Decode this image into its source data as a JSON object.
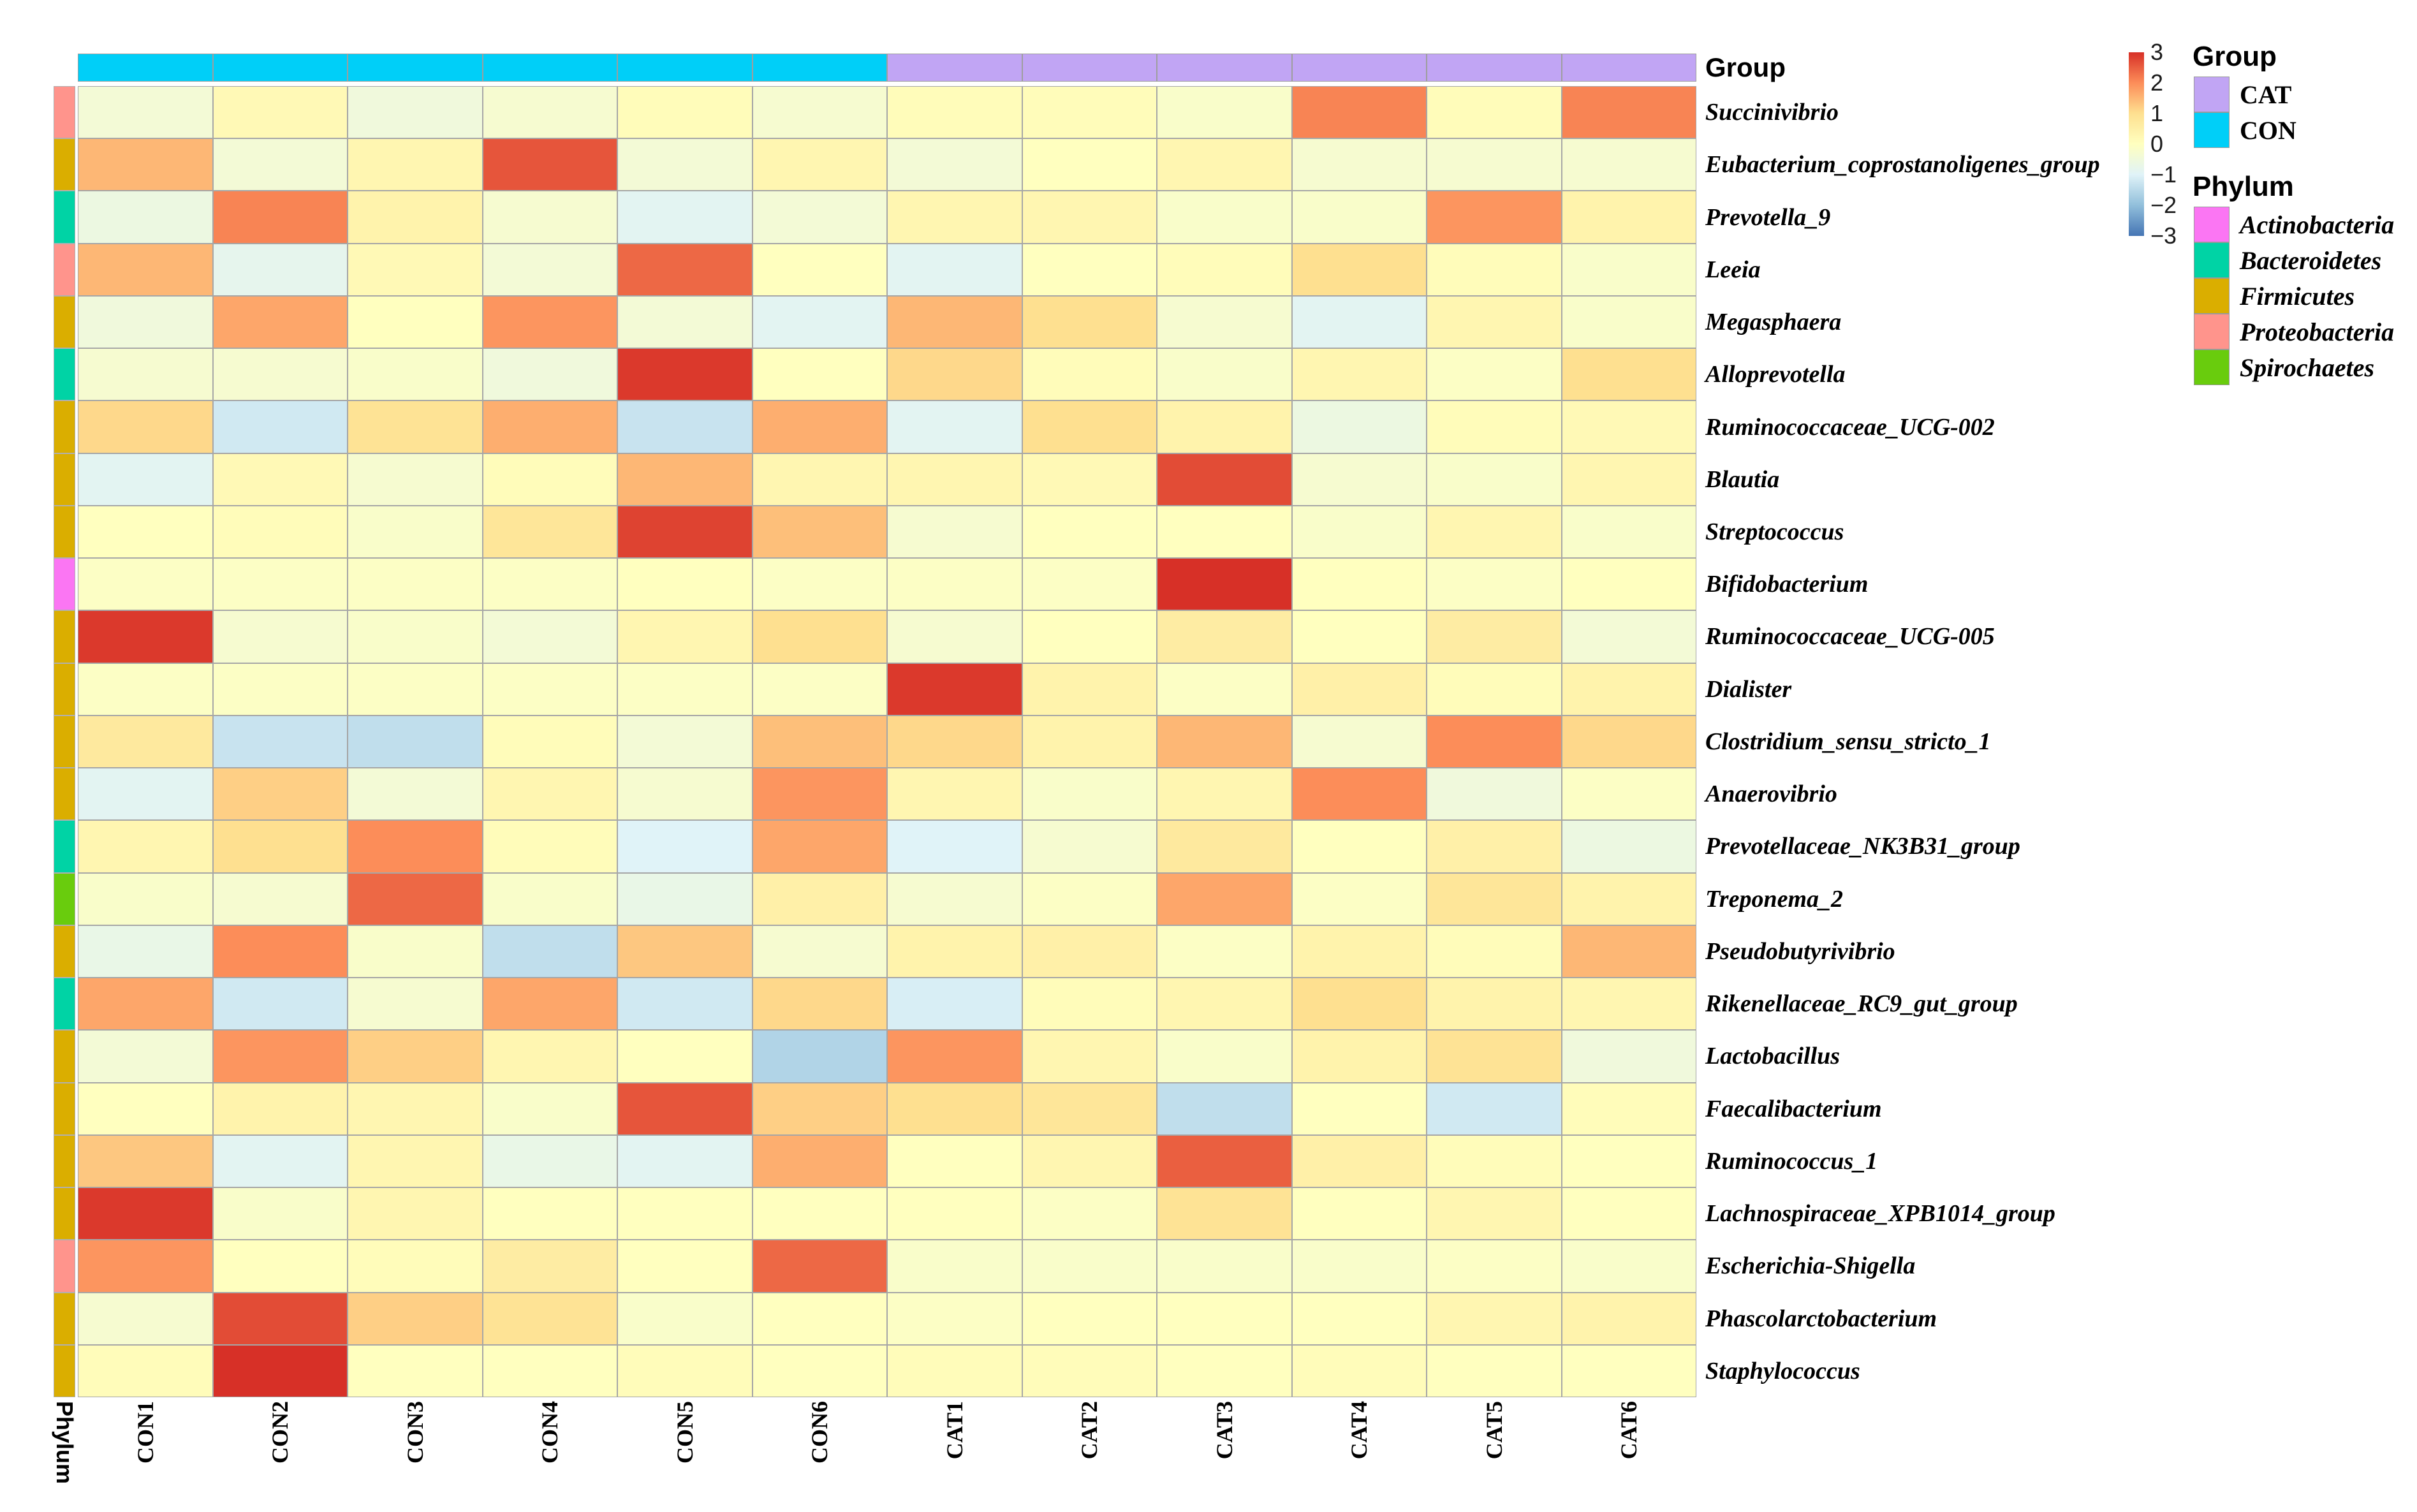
{
  "figure": {
    "group_axis_title": "Group",
    "phylum_axis_title": "Phylum"
  },
  "legend": {
    "scale_ticks": [
      3,
      2,
      1,
      0,
      -1,
      -2,
      -3
    ],
    "group": {
      "title": "Group",
      "items": [
        "CAT",
        "CON"
      ]
    },
    "phylum": {
      "title": "Phylum",
      "items": [
        "Actinobacteria",
        "Bacteroidetes",
        "Firmicutes",
        "Proteobacteria",
        "Spirochaetes"
      ]
    }
  },
  "chart_data": {
    "type": "heatmap",
    "columns": [
      "CON1",
      "CON2",
      "CON3",
      "CON4",
      "CON5",
      "CON6",
      "CAT1",
      "CAT2",
      "CAT3",
      "CAT4",
      "CAT5",
      "CAT6"
    ],
    "column_groups": [
      "CON",
      "CON",
      "CON",
      "CON",
      "CON",
      "CON",
      "CAT",
      "CAT",
      "CAT",
      "CAT",
      "CAT",
      "CAT"
    ],
    "group_colors": {
      "CON": "#00CFF8",
      "CAT": "#C1A5F4"
    },
    "phylum_colors": {
      "Actinobacteria": "#FB76F3",
      "Bacteroidetes": "#00D3A5",
      "Firmicutes": "#DAAE00",
      "Proteobacteria": "#FF948C",
      "Spirochaetes": "#69CC0D"
    },
    "value_range": [
      -3,
      3
    ],
    "colormap_stops": [
      [
        -3,
        "#4575B4"
      ],
      [
        -2,
        "#91BFDB"
      ],
      [
        -1,
        "#E0F3F8"
      ],
      [
        0,
        "#FFFFBF"
      ],
      [
        1,
        "#FEE090"
      ],
      [
        2,
        "#FC8D59"
      ],
      [
        3,
        "#D73027"
      ]
    ],
    "rows": [
      {
        "name": "Succinivibrio",
        "phylum": "Proteobacteria",
        "values": [
          -0.4,
          0.2,
          -0.5,
          -0.3,
          0.1,
          -0.3,
          0.1,
          0.1,
          -0.2,
          2.1,
          0.1,
          2.1
        ]
      },
      {
        "name": "Eubacterium_coprostanoligenes_group",
        "phylum": "Firmicutes",
        "values": [
          1.5,
          -0.4,
          0.3,
          2.6,
          -0.4,
          0.3,
          -0.4,
          0,
          0.3,
          -0.3,
          -0.3,
          -0.3
        ]
      },
      {
        "name": "Prevotella_9",
        "phylum": "Bacteroidetes",
        "values": [
          -0.6,
          2.1,
          0.4,
          -0.3,
          -0.9,
          -0.4,
          0.3,
          0.3,
          -0.2,
          -0.2,
          1.9,
          0.4
        ]
      },
      {
        "name": "Leeia",
        "phylum": "Proteobacteria",
        "values": [
          1.5,
          -0.8,
          0.2,
          -0.4,
          2.4,
          0,
          -0.9,
          0,
          0.1,
          1,
          0.1,
          -0.2
        ]
      },
      {
        "name": "Megasphaera",
        "phylum": "Firmicutes",
        "values": [
          -0.5,
          1.7,
          0,
          1.9,
          -0.4,
          -0.9,
          1.5,
          1,
          -0.3,
          -0.9,
          0.3,
          -0.2
        ]
      },
      {
        "name": "Alloprevotella",
        "phylum": "Bacteroidetes",
        "values": [
          -0.3,
          -0.3,
          -0.2,
          -0.5,
          2.9,
          0,
          1.1,
          0.1,
          -0.2,
          0.3,
          -0.1,
          1
        ]
      },
      {
        "name": "Ruminococcaceae_UCG-002",
        "phylum": "Firmicutes",
        "values": [
          1.1,
          -1.2,
          0.9,
          1.6,
          -1.3,
          1.6,
          -0.9,
          1,
          0.4,
          -0.6,
          0.1,
          0.2
        ]
      },
      {
        "name": "Blautia",
        "phylum": "Firmicutes",
        "values": [
          -0.9,
          0.2,
          -0.3,
          0.1,
          1.5,
          0.3,
          0.3,
          0.2,
          2.7,
          -0.3,
          -0.2,
          0.3
        ]
      },
      {
        "name": "Streptococcus",
        "phylum": "Firmicutes",
        "values": [
          0,
          0.1,
          -0.2,
          0.8,
          2.8,
          1.4,
          -0.3,
          0,
          0,
          -0.2,
          0.3,
          -0.2
        ]
      },
      {
        "name": "Bifidobacterium",
        "phylum": "Actinobacteria",
        "values": [
          -0.1,
          -0.1,
          -0.1,
          -0.1,
          0,
          -0.1,
          -0.1,
          -0.1,
          3,
          0,
          -0.1,
          0
        ]
      },
      {
        "name": "Ruminococcaceae_UCG-005",
        "phylum": "Firmicutes",
        "values": [
          2.9,
          -0.3,
          -0.2,
          -0.4,
          0.3,
          1,
          -0.3,
          0,
          0.6,
          0,
          0.6,
          -0.4
        ]
      },
      {
        "name": "Dialister",
        "phylum": "Firmicutes",
        "values": [
          -0.1,
          -0.1,
          -0.1,
          -0.1,
          -0.1,
          -0.1,
          2.9,
          0.4,
          -0.1,
          0.5,
          0.1,
          0.4
        ]
      },
      {
        "name": "Clostridium_sensu_stricto_1",
        "phylum": "Firmicutes",
        "values": [
          0.7,
          -1.3,
          -1.4,
          0.1,
          -0.4,
          1.4,
          1.1,
          0.4,
          1.5,
          -0.3,
          2,
          1.1
        ]
      },
      {
        "name": "Anaerovibrio",
        "phylum": "Firmicutes",
        "values": [
          -0.9,
          1.2,
          -0.4,
          0.3,
          -0.3,
          1.9,
          0.3,
          -0.2,
          0.3,
          2,
          -0.5,
          -0.1
        ]
      },
      {
        "name": "Prevotellaceae_NK3B31_group",
        "phylum": "Bacteroidetes",
        "values": [
          0.3,
          1,
          2,
          0.1,
          -1,
          1.7,
          -1,
          -0.3,
          0.7,
          0,
          0.5,
          -0.6
        ]
      },
      {
        "name": "Treponema_2",
        "phylum": "Spirochaetes",
        "values": [
          -0.2,
          -0.3,
          2.4,
          -0.2,
          -0.7,
          0.5,
          -0.3,
          -0.1,
          1.7,
          -0.1,
          0.8,
          0.4
        ]
      },
      {
        "name": "Pseudobutyrivibrio",
        "phylum": "Firmicutes",
        "values": [
          -0.7,
          2,
          -0.2,
          -1.4,
          1.3,
          -0.3,
          0.4,
          0.5,
          -0.1,
          0.4,
          0.1,
          1.5
        ]
      },
      {
        "name": "Rikenellaceae_RC9_gut_group",
        "phylum": "Bacteroidetes",
        "values": [
          1.7,
          -1.2,
          -0.3,
          1.7,
          -1.2,
          1.1,
          -1.1,
          0.1,
          0.3,
          1,
          0.4,
          0.3
        ]
      },
      {
        "name": "Lactobacillus",
        "phylum": "Firmicutes",
        "values": [
          -0.4,
          1.9,
          1.2,
          0.3,
          0,
          -1.6,
          1.9,
          0.3,
          -0.2,
          0.4,
          0.9,
          -0.5
        ]
      },
      {
        "name": "Faecalibacterium",
        "phylum": "Firmicutes",
        "values": [
          0,
          0.4,
          0.3,
          -0.2,
          2.6,
          1.2,
          1,
          0.8,
          -1.4,
          0,
          -1.2,
          0.1
        ]
      },
      {
        "name": "Ruminococcus_1",
        "phylum": "Firmicutes",
        "values": [
          1.3,
          -0.9,
          0.3,
          -0.7,
          -0.9,
          1.6,
          0,
          0.3,
          2.5,
          0.5,
          0.1,
          0
        ]
      },
      {
        "name": "Lachnospiraceae_XPB1014_group",
        "phylum": "Firmicutes",
        "values": [
          2.9,
          -0.2,
          0.3,
          0,
          0,
          0,
          0,
          -0.1,
          0.9,
          0,
          0.3,
          0
        ]
      },
      {
        "name": "Escherichia-Shigella",
        "phylum": "Proteobacteria",
        "values": [
          1.9,
          0,
          0.1,
          0.6,
          0,
          2.4,
          -0.2,
          -0.2,
          -0.2,
          -0.2,
          -0.1,
          -0.2
        ]
      },
      {
        "name": "Phascolarctobacterium",
        "phylum": "Firmicutes",
        "values": [
          -0.3,
          2.7,
          1.2,
          0.9,
          -0.2,
          0,
          -0.1,
          0,
          0,
          0,
          0.3,
          0.4
        ]
      },
      {
        "name": "Staphylococcus",
        "phylum": "Firmicutes",
        "values": [
          0.1,
          3,
          0,
          0,
          0.1,
          0,
          0.1,
          0.1,
          0,
          0.1,
          0,
          0
        ]
      }
    ]
  }
}
